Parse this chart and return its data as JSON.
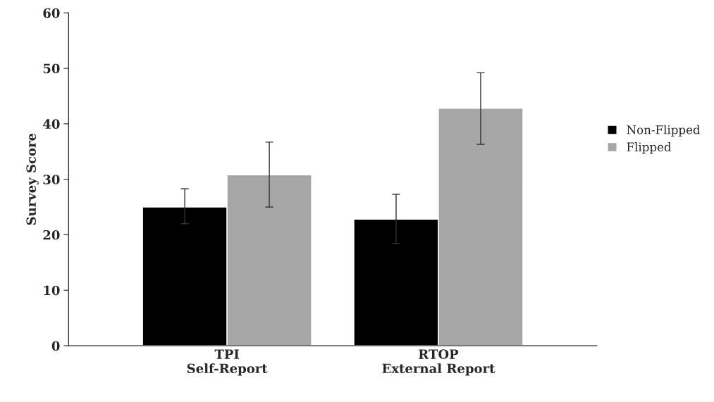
{
  "chart_data": {
    "type": "bar",
    "ylabel": "Survey Score",
    "categories": [
      "TPI\nSelf-Report",
      "RTOP\nExternal Report"
    ],
    "series": [
      {
        "name": "Non-Flipped",
        "color": "#000000",
        "values": [
          25.0,
          22.8
        ],
        "errors": [
          [
            22.0,
            28.3
          ],
          [
            18.4,
            27.3
          ]
        ]
      },
      {
        "name": "Flipped",
        "color": "#a6a6a6",
        "values": [
          30.8,
          42.8
        ],
        "errors": [
          [
            25.0,
            36.7
          ],
          [
            36.3,
            49.2
          ]
        ]
      }
    ],
    "ylim": [
      0,
      60
    ],
    "yticks": [
      0,
      10,
      20,
      30,
      40,
      50,
      60
    ],
    "grid": false,
    "legend": "right"
  }
}
